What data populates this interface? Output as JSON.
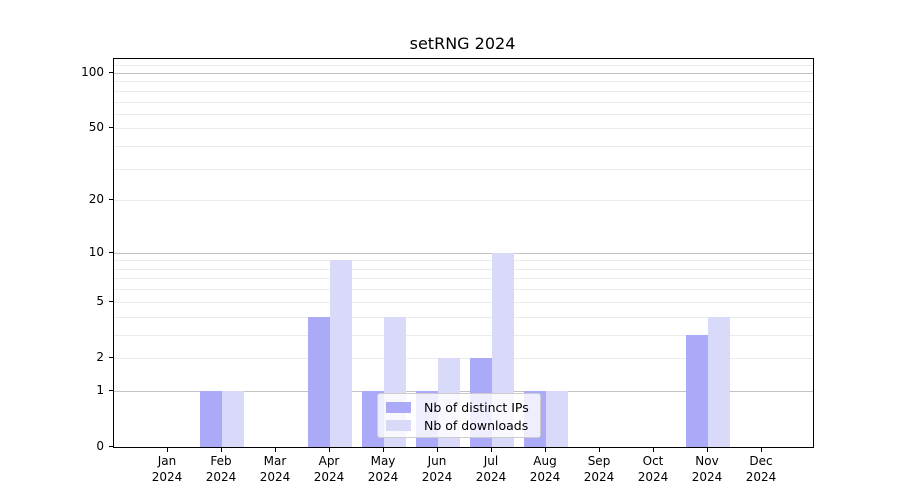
{
  "chart_data": {
    "type": "bar",
    "title": "setRNG 2024",
    "categories": [
      {
        "month": "Jan",
        "year": "2024"
      },
      {
        "month": "Feb",
        "year": "2024"
      },
      {
        "month": "Mar",
        "year": "2024"
      },
      {
        "month": "Apr",
        "year": "2024"
      },
      {
        "month": "May",
        "year": "2024"
      },
      {
        "month": "Jun",
        "year": "2024"
      },
      {
        "month": "Jul",
        "year": "2024"
      },
      {
        "month": "Aug",
        "year": "2024"
      },
      {
        "month": "Sep",
        "year": "2024"
      },
      {
        "month": "Oct",
        "year": "2024"
      },
      {
        "month": "Nov",
        "year": "2024"
      },
      {
        "month": "Dec",
        "year": "2024"
      }
    ],
    "series": [
      {
        "name": "Nb of distinct IPs",
        "color": "#aaaaf9",
        "values": [
          0,
          1,
          0,
          4,
          1,
          1,
          2,
          1,
          0,
          0,
          3,
          0
        ]
      },
      {
        "name": "Nb of downloads",
        "color": "#d9d9fa",
        "values": [
          0,
          1,
          0,
          9,
          4,
          2,
          10,
          1,
          0,
          0,
          4,
          0
        ]
      }
    ],
    "xlabel": "",
    "ylabel": "",
    "yscale": "log1p",
    "ylim": [
      0,
      119
    ],
    "yticks": [
      0,
      1,
      2,
      5,
      10,
      20,
      50,
      100
    ],
    "grid": true,
    "gridlines": {
      "major": [
        1,
        10,
        100
      ],
      "minor": [
        2,
        3,
        4,
        5,
        6,
        7,
        8,
        9,
        20,
        30,
        40,
        50,
        60,
        70,
        80,
        90,
        110
      ]
    },
    "legend_position": "lower center",
    "colors": {
      "axis": "#000000",
      "major_grid": "#c3c3c3",
      "minor_grid": "#ebebeb",
      "legend_border": "#cccccc"
    }
  }
}
